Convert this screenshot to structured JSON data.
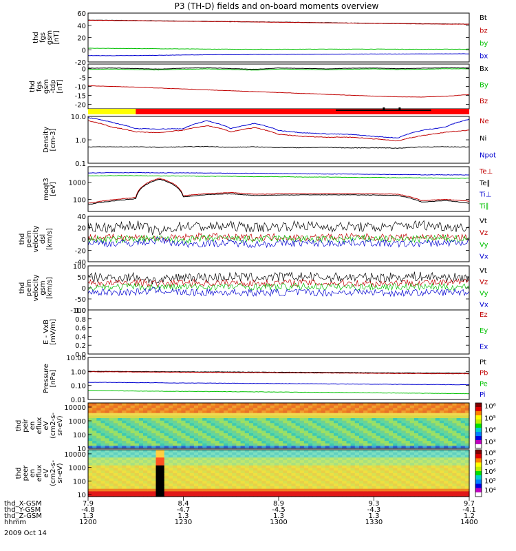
{
  "title": "P3 (TH-D) fields and on-board moments overview",
  "chart_data": [
    {
      "type": "line",
      "ylabel": [
        "thd",
        "fgs",
        "gsm",
        "[nT]"
      ],
      "ylim": [
        -20,
        60
      ],
      "yticks": [
        "60",
        "40",
        "20",
        "0",
        "-20"
      ],
      "series": [
        {
          "name": "Bt",
          "color": "#000000",
          "values": [
            48.5,
            48.2,
            47.8,
            47.3,
            46.9,
            46.5,
            46.1,
            45.6,
            45.2,
            44.8,
            44.3,
            43.8,
            43.3,
            42.9,
            42.5,
            42.2,
            42.0
          ]
        },
        {
          "name": "bz",
          "color": "#c00000",
          "values": [
            48.3,
            48.0,
            47.6,
            47.1,
            46.7,
            46.3,
            45.9,
            45.4,
            45.0,
            44.6,
            44.1,
            43.6,
            43.1,
            42.7,
            42.3,
            42.0,
            41.8
          ]
        },
        {
          "name": "by",
          "color": "#00c000",
          "values": [
            2.5,
            2.2,
            2.0,
            1.7,
            1.4,
            1.0,
            0.9,
            0.8,
            0.8,
            0.9,
            1.0,
            1.0,
            1.1,
            0.9,
            0.8,
            0.9,
            1.0
          ]
        },
        {
          "name": "bx",
          "color": "#0000d0",
          "values": [
            -9.5,
            -9.7,
            -9.5,
            -9.0,
            -8.5,
            -8.2,
            -8.0,
            -7.8,
            -7.6,
            -7.5,
            -7.3,
            -7.1,
            -7.0,
            -6.9,
            -6.8,
            -6.7,
            -6.6
          ]
        }
      ]
    },
    {
      "type": "line",
      "ylabel": [
        "thd",
        "fgs",
        "gsm",
        "-tdp",
        "[nT]"
      ],
      "ylim": [
        -22.5,
        2.5
      ],
      "yticks": [
        "0",
        "-5",
        "-10",
        "-15",
        "-20"
      ],
      "series": [
        {
          "name": "Bx",
          "color": "#000000",
          "values": [
            0.2,
            0.3,
            0.0,
            -0.3,
            0.2,
            0.4,
            0.0,
            -0.4,
            0.3,
            0.1,
            -0.2,
            0.2,
            0.3,
            -0.1,
            0.2,
            0.4,
            0.3
          ]
        },
        {
          "name": "By",
          "color": "#00c000",
          "values": [
            -0.5,
            -0.3,
            -0.6,
            -0.8,
            -0.4,
            -0.2,
            -0.6,
            -0.9,
            -0.3,
            -0.5,
            -0.7,
            -0.4,
            -0.2,
            -0.6,
            -0.4,
            -0.1,
            -0.2
          ]
        },
        {
          "name": "Bz",
          "color": "#c00000",
          "values": [
            -9.6,
            -10.0,
            -10.4,
            -10.9,
            -11.4,
            -11.9,
            -12.4,
            -12.9,
            -13.4,
            -13.9,
            -14.4,
            -14.9,
            -15.4,
            -15.8,
            -15.9,
            -15.5,
            -14.5
          ]
        }
      ]
    },
    {
      "type": "line",
      "log": true,
      "ylabel": [
        "Density",
        "[cm-3]"
      ],
      "ylim": [
        0.1,
        10
      ],
      "yticks": [
        "10.0",
        "1.0",
        "0.1"
      ],
      "series": [
        {
          "name": "Ne",
          "color": "#c00000",
          "values": [
            6.5,
            3.5,
            2.2,
            2.0,
            2.6,
            4.0,
            2.2,
            3.3,
            1.7,
            1.4,
            1.3,
            1.3,
            1.1,
            0.9,
            1.5,
            2.1,
            2.6
          ]
        },
        {
          "name": "Ni",
          "color": "#000000",
          "values": [
            0.5,
            0.5,
            0.5,
            0.48,
            0.5,
            0.52,
            0.48,
            0.5,
            0.47,
            0.46,
            0.48,
            0.45,
            0.46,
            0.44,
            0.5,
            0.5,
            0.5
          ]
        },
        {
          "name": "Npot",
          "color": "#0000d0",
          "values": [
            9.0,
            5.5,
            3.0,
            2.9,
            3.0,
            6.5,
            3.0,
            5.0,
            2.5,
            2.0,
            1.8,
            1.7,
            1.4,
            1.2,
            2.5,
            3.5,
            7.5
          ]
        }
      ]
    },
    {
      "type": "line",
      "log": true,
      "ylabel": [
        "moqt3",
        "[eV]"
      ],
      "ylim": [
        20,
        8000
      ],
      "yticks": [
        "1000",
        "100"
      ],
      "series": [
        {
          "name": "Te⊥",
          "color": "#c00000",
          "values": [
            60,
            95,
            130,
            1700,
            160,
            220,
            250,
            200,
            210,
            215,
            215,
            215,
            210,
            200,
            85,
            100,
            80
          ]
        },
        {
          "name": "Te∥",
          "color": "#000000",
          "values": [
            50,
            80,
            110,
            1500,
            140,
            190,
            210,
            170,
            180,
            185,
            185,
            185,
            180,
            170,
            70,
            85,
            60
          ]
        },
        {
          "name": "Ti⊥",
          "color": "#0000d0",
          "values": [
            3500,
            3600,
            3600,
            3500,
            3500,
            3400,
            3300,
            3300,
            3200,
            3100,
            3000,
            3000,
            2900,
            2800,
            2700,
            2700,
            2600
          ]
        },
        {
          "name": "Ti∥",
          "color": "#00c000",
          "values": [
            2300,
            2400,
            2400,
            2300,
            2300,
            2200,
            2200,
            2100,
            2100,
            2000,
            2000,
            1900,
            1900,
            1800,
            1800,
            1700,
            1700
          ]
        }
      ]
    },
    {
      "type": "line",
      "ylabel": [
        "thd",
        "peim",
        "velocity",
        "dsl",
        "[km/s]"
      ],
      "ylim": [
        -40,
        40
      ],
      "yticks": [
        "40",
        "20",
        "0",
        "-20",
        "-40"
      ],
      "series": [
        {
          "name": "Vt",
          "color": "#000000",
          "values": [
            22,
            20,
            25,
            12,
            24,
            21,
            23,
            20,
            22,
            24,
            21,
            22,
            20,
            23,
            25,
            22,
            20
          ]
        },
        {
          "name": "Vz",
          "color": "#c00000",
          "values": [
            3,
            2,
            4,
            0,
            3,
            5,
            2,
            3,
            4,
            2,
            3,
            4,
            3,
            2,
            4,
            3,
            2
          ]
        },
        {
          "name": "Vy",
          "color": "#00c000",
          "values": [
            0,
            -1,
            1,
            0,
            -2,
            1,
            0,
            -1,
            1,
            0,
            -1,
            0,
            1,
            -1,
            0,
            1,
            0
          ]
        },
        {
          "name": "Vx",
          "color": "#0000d0",
          "values": [
            -6,
            -8,
            -7,
            -2,
            -9,
            -8,
            -7,
            -9,
            -8,
            -7,
            -8,
            -6,
            -7,
            -9,
            -8,
            -7,
            -6
          ]
        }
      ]
    },
    {
      "type": "line",
      "ylabel": [
        "thd",
        "peim",
        "velocity",
        "gsm",
        "[km/s]"
      ],
      "ylim": [
        -100,
        100
      ],
      "yticks": [
        "100",
        "50",
        "0",
        "-50",
        "-100"
      ],
      "series": [
        {
          "name": "Vt",
          "color": "#000000",
          "values": [
            48,
            45,
            50,
            30,
            52,
            47,
            50,
            46,
            49,
            51,
            47,
            48,
            46,
            50,
            52,
            48,
            45
          ]
        },
        {
          "name": "Vz",
          "color": "#c00000",
          "values": [
            22,
            20,
            25,
            18,
            24,
            22,
            23,
            21,
            22,
            24,
            21,
            22,
            20,
            23,
            25,
            22,
            28
          ]
        },
        {
          "name": "Vy",
          "color": "#00c000",
          "values": [
            5,
            4,
            6,
            3,
            5,
            4,
            6,
            5,
            4,
            6,
            5,
            4,
            5,
            6,
            5,
            4,
            5
          ]
        },
        {
          "name": "Vx",
          "color": "#0000d0",
          "values": [
            -18,
            -20,
            -19,
            -10,
            -22,
            -21,
            -20,
            -23,
            -21,
            -20,
            -22,
            -19,
            -20,
            -23,
            -21,
            -20,
            -18
          ]
        }
      ]
    },
    {
      "type": "line",
      "ylabel": [
        "E - VxB",
        "[mV/m]"
      ],
      "ylim": [
        0,
        1
      ],
      "yticks": [
        "1.0",
        "0.8",
        "0.6",
        "0.4",
        "0.2",
        "0.0"
      ],
      "series": [
        {
          "name": "Ez",
          "color": "#c00000",
          "values": []
        },
        {
          "name": "Ey",
          "color": "#00c000",
          "values": []
        },
        {
          "name": "Ex",
          "color": "#0000d0",
          "values": []
        }
      ]
    },
    {
      "type": "line",
      "log": true,
      "ylabel": [
        "Pressure",
        "[nPa]"
      ],
      "ylim": [
        0.01,
        10
      ],
      "yticks": [
        "10.00",
        "1.00",
        "0.10",
        "0.01"
      ],
      "series": [
        {
          "name": "Pt",
          "color": "#000000",
          "values": [
            1.02,
            1.01,
            0.99,
            0.97,
            0.95,
            0.93,
            0.92,
            0.9,
            0.88,
            0.86,
            0.85,
            0.83,
            0.81,
            0.79,
            0.78,
            0.77,
            0.76
          ]
        },
        {
          "name": "Pb",
          "color": "#c00000",
          "values": [
            0.95,
            0.94,
            0.92,
            0.9,
            0.88,
            0.86,
            0.85,
            0.83,
            0.81,
            0.79,
            0.78,
            0.76,
            0.74,
            0.72,
            0.71,
            0.7,
            0.69
          ]
        },
        {
          "name": "Pe",
          "color": "#00c000",
          "values": [
            0.045,
            0.042,
            0.04,
            0.039,
            0.038,
            0.037,
            0.036,
            0.035,
            0.034,
            0.033,
            0.032,
            0.031,
            0.03,
            0.029,
            0.028,
            0.027,
            0.026
          ]
        },
        {
          "name": "Pi",
          "color": "#0000d0",
          "values": [
            0.17,
            0.165,
            0.16,
            0.155,
            0.15,
            0.147,
            0.144,
            0.14,
            0.137,
            0.134,
            0.13,
            0.127,
            0.124,
            0.121,
            0.118,
            0.115,
            0.112
          ]
        }
      ]
    },
    {
      "type": "heatmap",
      "ylabel": [
        "thd",
        "peir",
        "en",
        "eflux",
        "eV",
        "(cm2-s-",
        "sr-eV)"
      ],
      "ylim": [
        10,
        20000
      ],
      "yticks": [
        "10000",
        "1000",
        "100",
        "10"
      ],
      "colorbar": [
        "10⁶",
        "10⁵",
        "10⁴",
        "10³"
      ]
    },
    {
      "type": "heatmap",
      "ylabel": [
        "thd",
        "peer",
        "en",
        "eflux",
        "eV",
        "(cm2-s-",
        "sr-eV)"
      ],
      "ylim": [
        7,
        20000
      ],
      "yticks": [
        "10000",
        "1000",
        "100",
        "10"
      ],
      "colorbar": [
        "10⁸",
        "10⁷",
        "10⁶",
        "10⁵",
        "10⁴"
      ]
    }
  ],
  "status_bar": {
    "yellow_until": "1215",
    "red_from": "1215",
    "black_segments": [
      "1333",
      "1338"
    ]
  },
  "x_axis": {
    "ticks": [
      "1200",
      "1230",
      "1300",
      "1330",
      "1400"
    ],
    "rows": [
      {
        "label": "thd_X-GSM",
        "values": [
          "7.9",
          "8.4",
          "8.9",
          "9.3",
          "9.7"
        ]
      },
      {
        "label": "thd_Y-GSM",
        "values": [
          "-4.8",
          "-4.7",
          "-4.5",
          "-4.3",
          "-4.1"
        ]
      },
      {
        "label": "thd_Z-GSM",
        "values": [
          "1.3",
          "1.3",
          "1.3",
          "1.3",
          "1.2"
        ]
      },
      {
        "label": "hhmm",
        "values": [
          "1200",
          "1230",
          "1300",
          "1330",
          "1400"
        ]
      }
    ],
    "date": "2009 Oct 14"
  }
}
